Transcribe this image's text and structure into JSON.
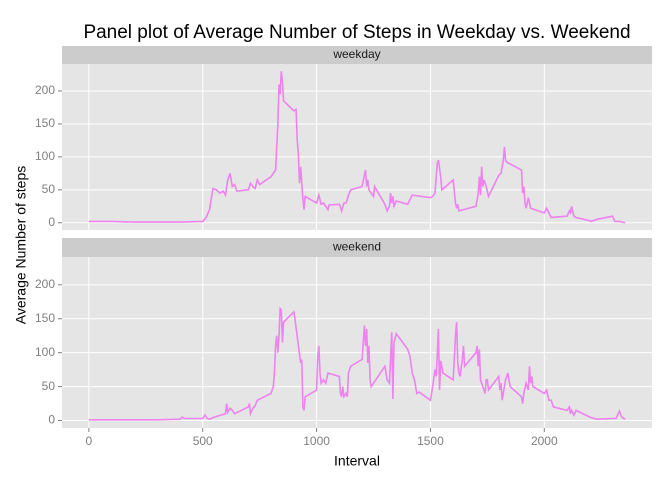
{
  "chart_data": {
    "type": "line",
    "facet": true,
    "grid": true,
    "title": "Panel plot of Average Number of Steps in Weekday vs. Weekend",
    "x_label": "Interval",
    "y_label": "Average Number of steps",
    "xlim": [
      -118,
      2473
    ],
    "xticks": [
      0,
      500,
      1000,
      1500,
      2000
    ],
    "ylim": [
      -11,
      241
    ],
    "yticks": [
      0,
      50,
      100,
      150,
      200
    ],
    "series": [
      {
        "name": "weekday",
        "color": "#ee82ee",
        "x": [
          0,
          100,
          200,
          300,
          400,
          500,
          515,
          530,
          545,
          560,
          575,
          590,
          600,
          610,
          620,
          630,
          640,
          650,
          700,
          710,
          720,
          730,
          740,
          750,
          800,
          820,
          830,
          835,
          840,
          845,
          850,
          855,
          900,
          910,
          915,
          920,
          925,
          930,
          940,
          945,
          950,
          1000,
          1010,
          1015,
          1020,
          1030,
          1050,
          1055,
          1100,
          1105,
          1110,
          1120,
          1130,
          1140,
          1150,
          1200,
          1210,
          1215,
          1220,
          1225,
          1230,
          1250,
          1255,
          1300,
          1310,
          1320,
          1325,
          1330,
          1335,
          1340,
          1350,
          1400,
          1410,
          1420,
          1500,
          1510,
          1520,
          1530,
          1535,
          1545,
          1550,
          1600,
          1610,
          1615,
          1620,
          1625,
          1700,
          1710,
          1715,
          1720,
          1725,
          1730,
          1735,
          1745,
          1755,
          1800,
          1810,
          1815,
          1820,
          1825,
          1830,
          1835,
          1900,
          1905,
          1910,
          1915,
          1920,
          1930,
          1940,
          2000,
          2010,
          2020,
          2030,
          2100,
          2110,
          2115,
          2120,
          2130,
          2140,
          2200,
          2205,
          2230,
          2300,
          2310,
          2330,
          2355
        ],
        "values": [
          2,
          2,
          1,
          1,
          1,
          2,
          8,
          20,
          52,
          50,
          45,
          48,
          42,
          65,
          75,
          55,
          58,
          48,
          50,
          60,
          55,
          52,
          65,
          58,
          70,
          80,
          150,
          210,
          195,
          230,
          215,
          185,
          170,
          172,
          125,
          105,
          60,
          85,
          35,
          20,
          40,
          30,
          42,
          35,
          28,
          30,
          20,
          27,
          28,
          24,
          18,
          30,
          30,
          42,
          50,
          55,
          72,
          80,
          55,
          65,
          50,
          40,
          55,
          28,
          18,
          25,
          45,
          30,
          40,
          25,
          33,
          28,
          35,
          42,
          38,
          40,
          45,
          90,
          95,
          70,
          50,
          65,
          30,
          22,
          28,
          18,
          25,
          45,
          70,
          42,
          85,
          55,
          65,
          55,
          40,
          72,
          75,
          85,
          95,
          115,
          95,
          92,
          80,
          45,
          55,
          30,
          22,
          38,
          22,
          15,
          22,
          15,
          8,
          10,
          18,
          15,
          25,
          10,
          8,
          3,
          2,
          5,
          10,
          2,
          2,
          0
        ]
      },
      {
        "name": "weekend",
        "color": "#ee82ee",
        "x": [
          0,
          100,
          200,
          300,
          400,
          410,
          420,
          500,
          510,
          520,
          530,
          550,
          600,
          605,
          610,
          620,
          630,
          640,
          700,
          705,
          710,
          720,
          730,
          740,
          800,
          810,
          815,
          820,
          825,
          830,
          835,
          840,
          845,
          850,
          855,
          900,
          905,
          930,
          935,
          940,
          945,
          950,
          1000,
          1005,
          1010,
          1015,
          1020,
          1030,
          1040,
          1050,
          1100,
          1105,
          1110,
          1115,
          1120,
          1130,
          1135,
          1140,
          1150,
          1200,
          1210,
          1215,
          1220,
          1225,
          1230,
          1235,
          1240,
          1250,
          1300,
          1310,
          1320,
          1330,
          1335,
          1340,
          1350,
          1400,
          1410,
          1420,
          1430,
          1440,
          1450,
          1500,
          1510,
          1520,
          1525,
          1530,
          1535,
          1540,
          1545,
          1550,
          1555,
          1600,
          1610,
          1615,
          1620,
          1625,
          1630,
          1640,
          1645,
          1650,
          1700,
          1705,
          1710,
          1715,
          1720,
          1730,
          1740,
          1745,
          1750,
          1755,
          1800,
          1805,
          1810,
          1815,
          1820,
          1830,
          1840,
          1850,
          1900,
          1905,
          1910,
          1920,
          1930,
          1935,
          1940,
          1945,
          1950,
          2000,
          2010,
          2020,
          2030,
          2040,
          2100,
          2110,
          2115,
          2120,
          2130,
          2140,
          2200,
          2230,
          2300,
          2315,
          2330,
          2340,
          2355
        ],
        "values": [
          1,
          1,
          1,
          1,
          2,
          5,
          3,
          3,
          8,
          3,
          2,
          5,
          10,
          25,
          12,
          18,
          15,
          10,
          20,
          25,
          10,
          18,
          22,
          30,
          40,
          50,
          70,
          110,
          125,
          100,
          125,
          165,
          163,
          115,
          145,
          160,
          150,
          85,
          90,
          20,
          15,
          35,
          45,
          95,
          110,
          70,
          55,
          60,
          55,
          70,
          65,
          40,
          35,
          50,
          35,
          40,
          35,
          70,
          80,
          90,
          140,
          110,
          135,
          85,
          110,
          60,
          50,
          55,
          80,
          60,
          55,
          130,
          32,
          115,
          128,
          105,
          95,
          70,
          60,
          40,
          42,
          30,
          50,
          75,
          65,
          95,
          135,
          45,
          88,
          80,
          70,
          60,
          125,
          145,
          85,
          70,
          65,
          90,
          110,
          80,
          100,
          110,
          80,
          105,
          60,
          50,
          40,
          60,
          60,
          45,
          65,
          45,
          55,
          30,
          40,
          60,
          70,
          50,
          35,
          25,
          40,
          55,
          45,
          80,
          55,
          65,
          50,
          40,
          45,
          30,
          30,
          20,
          15,
          20,
          10,
          15,
          8,
          15,
          5,
          2,
          3,
          3,
          14,
          5,
          2
        ]
      }
    ]
  }
}
